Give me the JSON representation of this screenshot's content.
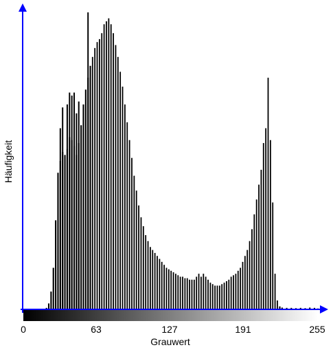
{
  "chart_data": {
    "type": "bar",
    "xlabel": "Grauwert",
    "ylabel": "Häufigkeit",
    "xticks": [
      "0",
      "63",
      "127",
      "191",
      "255"
    ],
    "xlim": [
      0,
      255
    ],
    "ylim": [
      0,
      100
    ],
    "grid": false,
    "legend": "none",
    "bar_color": "#000000",
    "axis_color": "#0000ff",
    "gradient": [
      "#000000",
      "#ffffff"
    ],
    "bins": [
      {
        "x": 0,
        "y": 0
      },
      {
        "x": 20,
        "y": 0.5
      },
      {
        "x": 22,
        "y": 2
      },
      {
        "x": 24,
        "y": 6
      },
      {
        "x": 26,
        "y": 14
      },
      {
        "x": 28,
        "y": 30
      },
      {
        "x": 30,
        "y": 46
      },
      {
        "x": 32,
        "y": 50
      },
      {
        "x": 34,
        "y": 53
      },
      {
        "x": 36,
        "y": 52
      },
      {
        "x": 38,
        "y": 54
      },
      {
        "x": 40,
        "y": 58
      },
      {
        "x": 42,
        "y": 57
      },
      {
        "x": 44,
        "y": 55
      },
      {
        "x": 46,
        "y": 52
      },
      {
        "x": 48,
        "y": 56
      },
      {
        "x": 50,
        "y": 62
      },
      {
        "x": 52,
        "y": 69
      },
      {
        "x": 54,
        "y": 74
      },
      {
        "x": 56,
        "y": 78
      },
      {
        "x": 58,
        "y": 82
      },
      {
        "x": 60,
        "y": 85
      },
      {
        "x": 62,
        "y": 88
      },
      {
        "x": 64,
        "y": 90
      },
      {
        "x": 66,
        "y": 91
      },
      {
        "x": 68,
        "y": 93
      },
      {
        "x": 70,
        "y": 96
      },
      {
        "x": 72,
        "y": 97
      },
      {
        "x": 74,
        "y": 98
      },
      {
        "x": 76,
        "y": 96
      },
      {
        "x": 78,
        "y": 93
      },
      {
        "x": 80,
        "y": 89
      },
      {
        "x": 82,
        "y": 85
      },
      {
        "x": 84,
        "y": 80
      },
      {
        "x": 86,
        "y": 75
      },
      {
        "x": 88,
        "y": 69
      },
      {
        "x": 90,
        "y": 63
      },
      {
        "x": 92,
        "y": 57
      },
      {
        "x": 94,
        "y": 51
      },
      {
        "x": 96,
        "y": 45
      },
      {
        "x": 98,
        "y": 40
      },
      {
        "x": 100,
        "y": 35
      },
      {
        "x": 102,
        "y": 31
      },
      {
        "x": 104,
        "y": 28
      },
      {
        "x": 106,
        "y": 25
      },
      {
        "x": 108,
        "y": 23
      },
      {
        "x": 110,
        "y": 21
      },
      {
        "x": 112,
        "y": 20
      },
      {
        "x": 114,
        "y": 19
      },
      {
        "x": 116,
        "y": 18
      },
      {
        "x": 118,
        "y": 17
      },
      {
        "x": 120,
        "y": 16
      },
      {
        "x": 122,
        "y": 15
      },
      {
        "x": 124,
        "y": 14
      },
      {
        "x": 126,
        "y": 13.5
      },
      {
        "x": 128,
        "y": 13
      },
      {
        "x": 130,
        "y": 12.5
      },
      {
        "x": 132,
        "y": 12
      },
      {
        "x": 134,
        "y": 11.5
      },
      {
        "x": 136,
        "y": 11
      },
      {
        "x": 138,
        "y": 11
      },
      {
        "x": 140,
        "y": 10.5
      },
      {
        "x": 142,
        "y": 10.5
      },
      {
        "x": 144,
        "y": 10
      },
      {
        "x": 146,
        "y": 10
      },
      {
        "x": 148,
        "y": 10
      },
      {
        "x": 150,
        "y": 11
      },
      {
        "x": 152,
        "y": 12
      },
      {
        "x": 154,
        "y": 11
      },
      {
        "x": 156,
        "y": 12
      },
      {
        "x": 158,
        "y": 11
      },
      {
        "x": 160,
        "y": 10
      },
      {
        "x": 162,
        "y": 9
      },
      {
        "x": 164,
        "y": 8.5
      },
      {
        "x": 166,
        "y": 8
      },
      {
        "x": 168,
        "y": 8
      },
      {
        "x": 170,
        "y": 8
      },
      {
        "x": 172,
        "y": 8.5
      },
      {
        "x": 174,
        "y": 9
      },
      {
        "x": 176,
        "y": 9.5
      },
      {
        "x": 178,
        "y": 10
      },
      {
        "x": 180,
        "y": 11
      },
      {
        "x": 182,
        "y": 11.5
      },
      {
        "x": 184,
        "y": 12
      },
      {
        "x": 186,
        "y": 13
      },
      {
        "x": 188,
        "y": 14
      },
      {
        "x": 190,
        "y": 16
      },
      {
        "x": 192,
        "y": 18
      },
      {
        "x": 194,
        "y": 20
      },
      {
        "x": 196,
        "y": 23
      },
      {
        "x": 198,
        "y": 27
      },
      {
        "x": 200,
        "y": 32
      },
      {
        "x": 202,
        "y": 37
      },
      {
        "x": 204,
        "y": 42
      },
      {
        "x": 206,
        "y": 47
      },
      {
        "x": 208,
        "y": 56
      },
      {
        "x": 210,
        "y": 61
      },
      {
        "x": 212,
        "y": 78
      },
      {
        "x": 214,
        "y": 57
      },
      {
        "x": 216,
        "y": 36
      },
      {
        "x": 218,
        "y": 12
      },
      {
        "x": 220,
        "y": 3
      },
      {
        "x": 222,
        "y": 1
      },
      {
        "x": 224,
        "y": 0.6
      },
      {
        "x": 228,
        "y": 0.5
      },
      {
        "x": 232,
        "y": 0.5
      },
      {
        "x": 236,
        "y": 0.4
      },
      {
        "x": 240,
        "y": 0.5
      },
      {
        "x": 244,
        "y": 0.4
      },
      {
        "x": 248,
        "y": 0.6
      },
      {
        "x": 252,
        "y": 0.5
      },
      {
        "x": 255,
        "y": 0.3
      }
    ],
    "spikes": [
      {
        "x": 32,
        "y": 61
      },
      {
        "x": 34,
        "y": 68
      },
      {
        "x": 38,
        "y": 69
      },
      {
        "x": 40,
        "y": 73
      },
      {
        "x": 42,
        "y": 72
      },
      {
        "x": 44,
        "y": 73
      },
      {
        "x": 46,
        "y": 66
      },
      {
        "x": 48,
        "y": 70
      },
      {
        "x": 56,
        "y": 100
      }
    ]
  }
}
